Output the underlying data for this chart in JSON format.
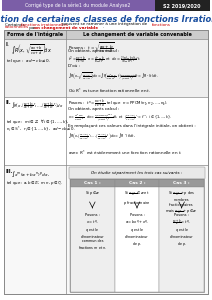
{
  "header_bg": "#7B5EA7",
  "header_text": "Corrigé type de la série1 du module Analyse2",
  "header_date_bg": "#222222",
  "header_date": "S2 2019/2020",
  "title": "Intégration de certaines classes de fonctions Irrationnelles",
  "col1_header": "Forme de l'intégrale",
  "col2_header": "Le changement de variable convenable",
  "table_border": "#888888",
  "table_header_bg": "#cccccc",
  "title_color": "#1a4fa0",
  "red_color": "#cc0000",
  "row_alt_bg": "#eeeeee",
  "case_header_bg": "#999999",
  "note_bg": "#e8e8e8",
  "bg_color": "#ffffff",
  "row3_bg": "#f5f5f5"
}
